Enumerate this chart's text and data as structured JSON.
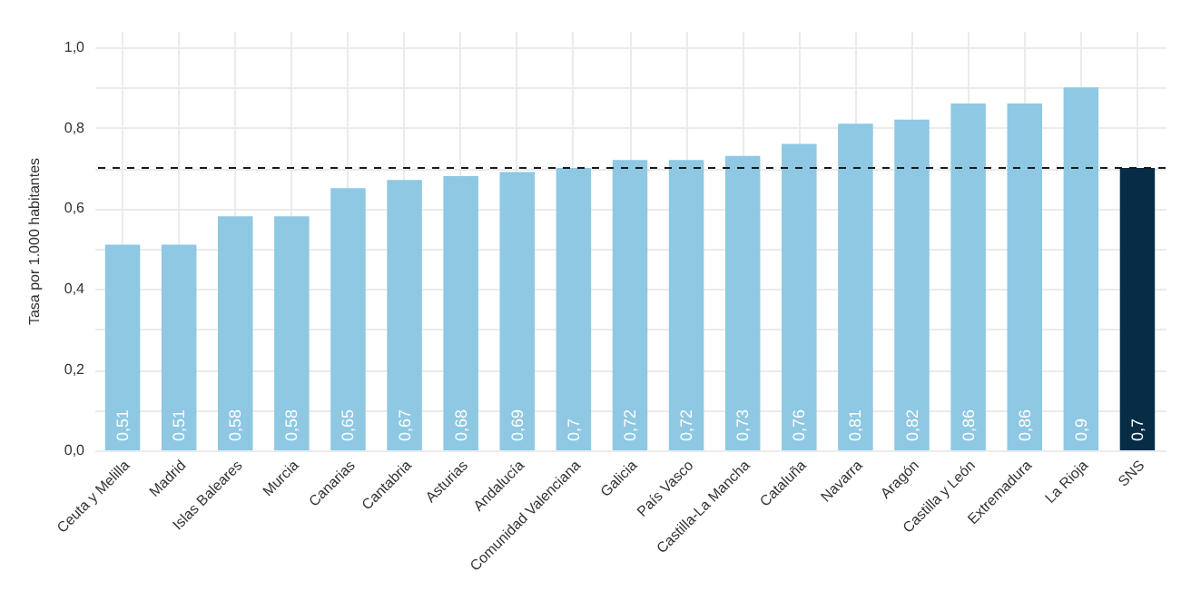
{
  "chart_data": {
    "type": "bar",
    "ylabel": "Tasa por 1.000 habitantes",
    "categories": [
      "Ceuta y Melilla",
      "Madrid",
      "Islas Baleares",
      "Murcia",
      "Canarias",
      "Cantabria",
      "Asturias",
      "Andalucía",
      "Comunidad Valenciana",
      "Galicia",
      "País Vasco",
      "Castilla-La Mancha",
      "Cataluña",
      "Navarra",
      "Aragón",
      "Castilla y León",
      "Extremadura",
      "La Rioja",
      "SNS"
    ],
    "values": [
      0.51,
      0.51,
      0.58,
      0.58,
      0.65,
      0.67,
      0.68,
      0.69,
      0.7,
      0.72,
      0.72,
      0.73,
      0.76,
      0.81,
      0.82,
      0.86,
      0.86,
      0.9,
      0.7
    ],
    "value_labels": [
      "0,51",
      "0,51",
      "0,58",
      "0,58",
      "0,65",
      "0,67",
      "0,68",
      "0,69",
      "0,7",
      "0,72",
      "0,72",
      "0,73",
      "0,76",
      "0,81",
      "0,82",
      "0,86",
      "0,86",
      "0,9",
      "0,7"
    ],
    "colors": [
      "#8ec8e3",
      "#8ec8e3",
      "#8ec8e3",
      "#8ec8e3",
      "#8ec8e3",
      "#8ec8e3",
      "#8ec8e3",
      "#8ec8e3",
      "#8ec8e3",
      "#8ec8e3",
      "#8ec8e3",
      "#8ec8e3",
      "#8ec8e3",
      "#8ec8e3",
      "#8ec8e3",
      "#8ec8e3",
      "#8ec8e3",
      "#8ec8e3",
      "#062d45"
    ],
    "ylim": [
      0,
      1.04
    ],
    "yticks": [
      {
        "value": 0,
        "label": "0,0"
      },
      {
        "value": 0.1,
        "label": null
      },
      {
        "value": 0.2,
        "label": "0,2"
      },
      {
        "value": 0.3,
        "label": null
      },
      {
        "value": 0.4,
        "label": "0,4"
      },
      {
        "value": 0.5,
        "label": null
      },
      {
        "value": 0.6,
        "label": "0,6"
      },
      {
        "value": 0.7,
        "label": null
      },
      {
        "value": 0.8,
        "label": "0,8"
      },
      {
        "value": 0.9,
        "label": null
      },
      {
        "value": 1.0,
        "label": "1,0"
      }
    ],
    "ref_lines": [
      {
        "axis": "y",
        "value": 0.7,
        "color": "#1a1a1a",
        "line_style": "dashed"
      }
    ],
    "grid": true
  }
}
